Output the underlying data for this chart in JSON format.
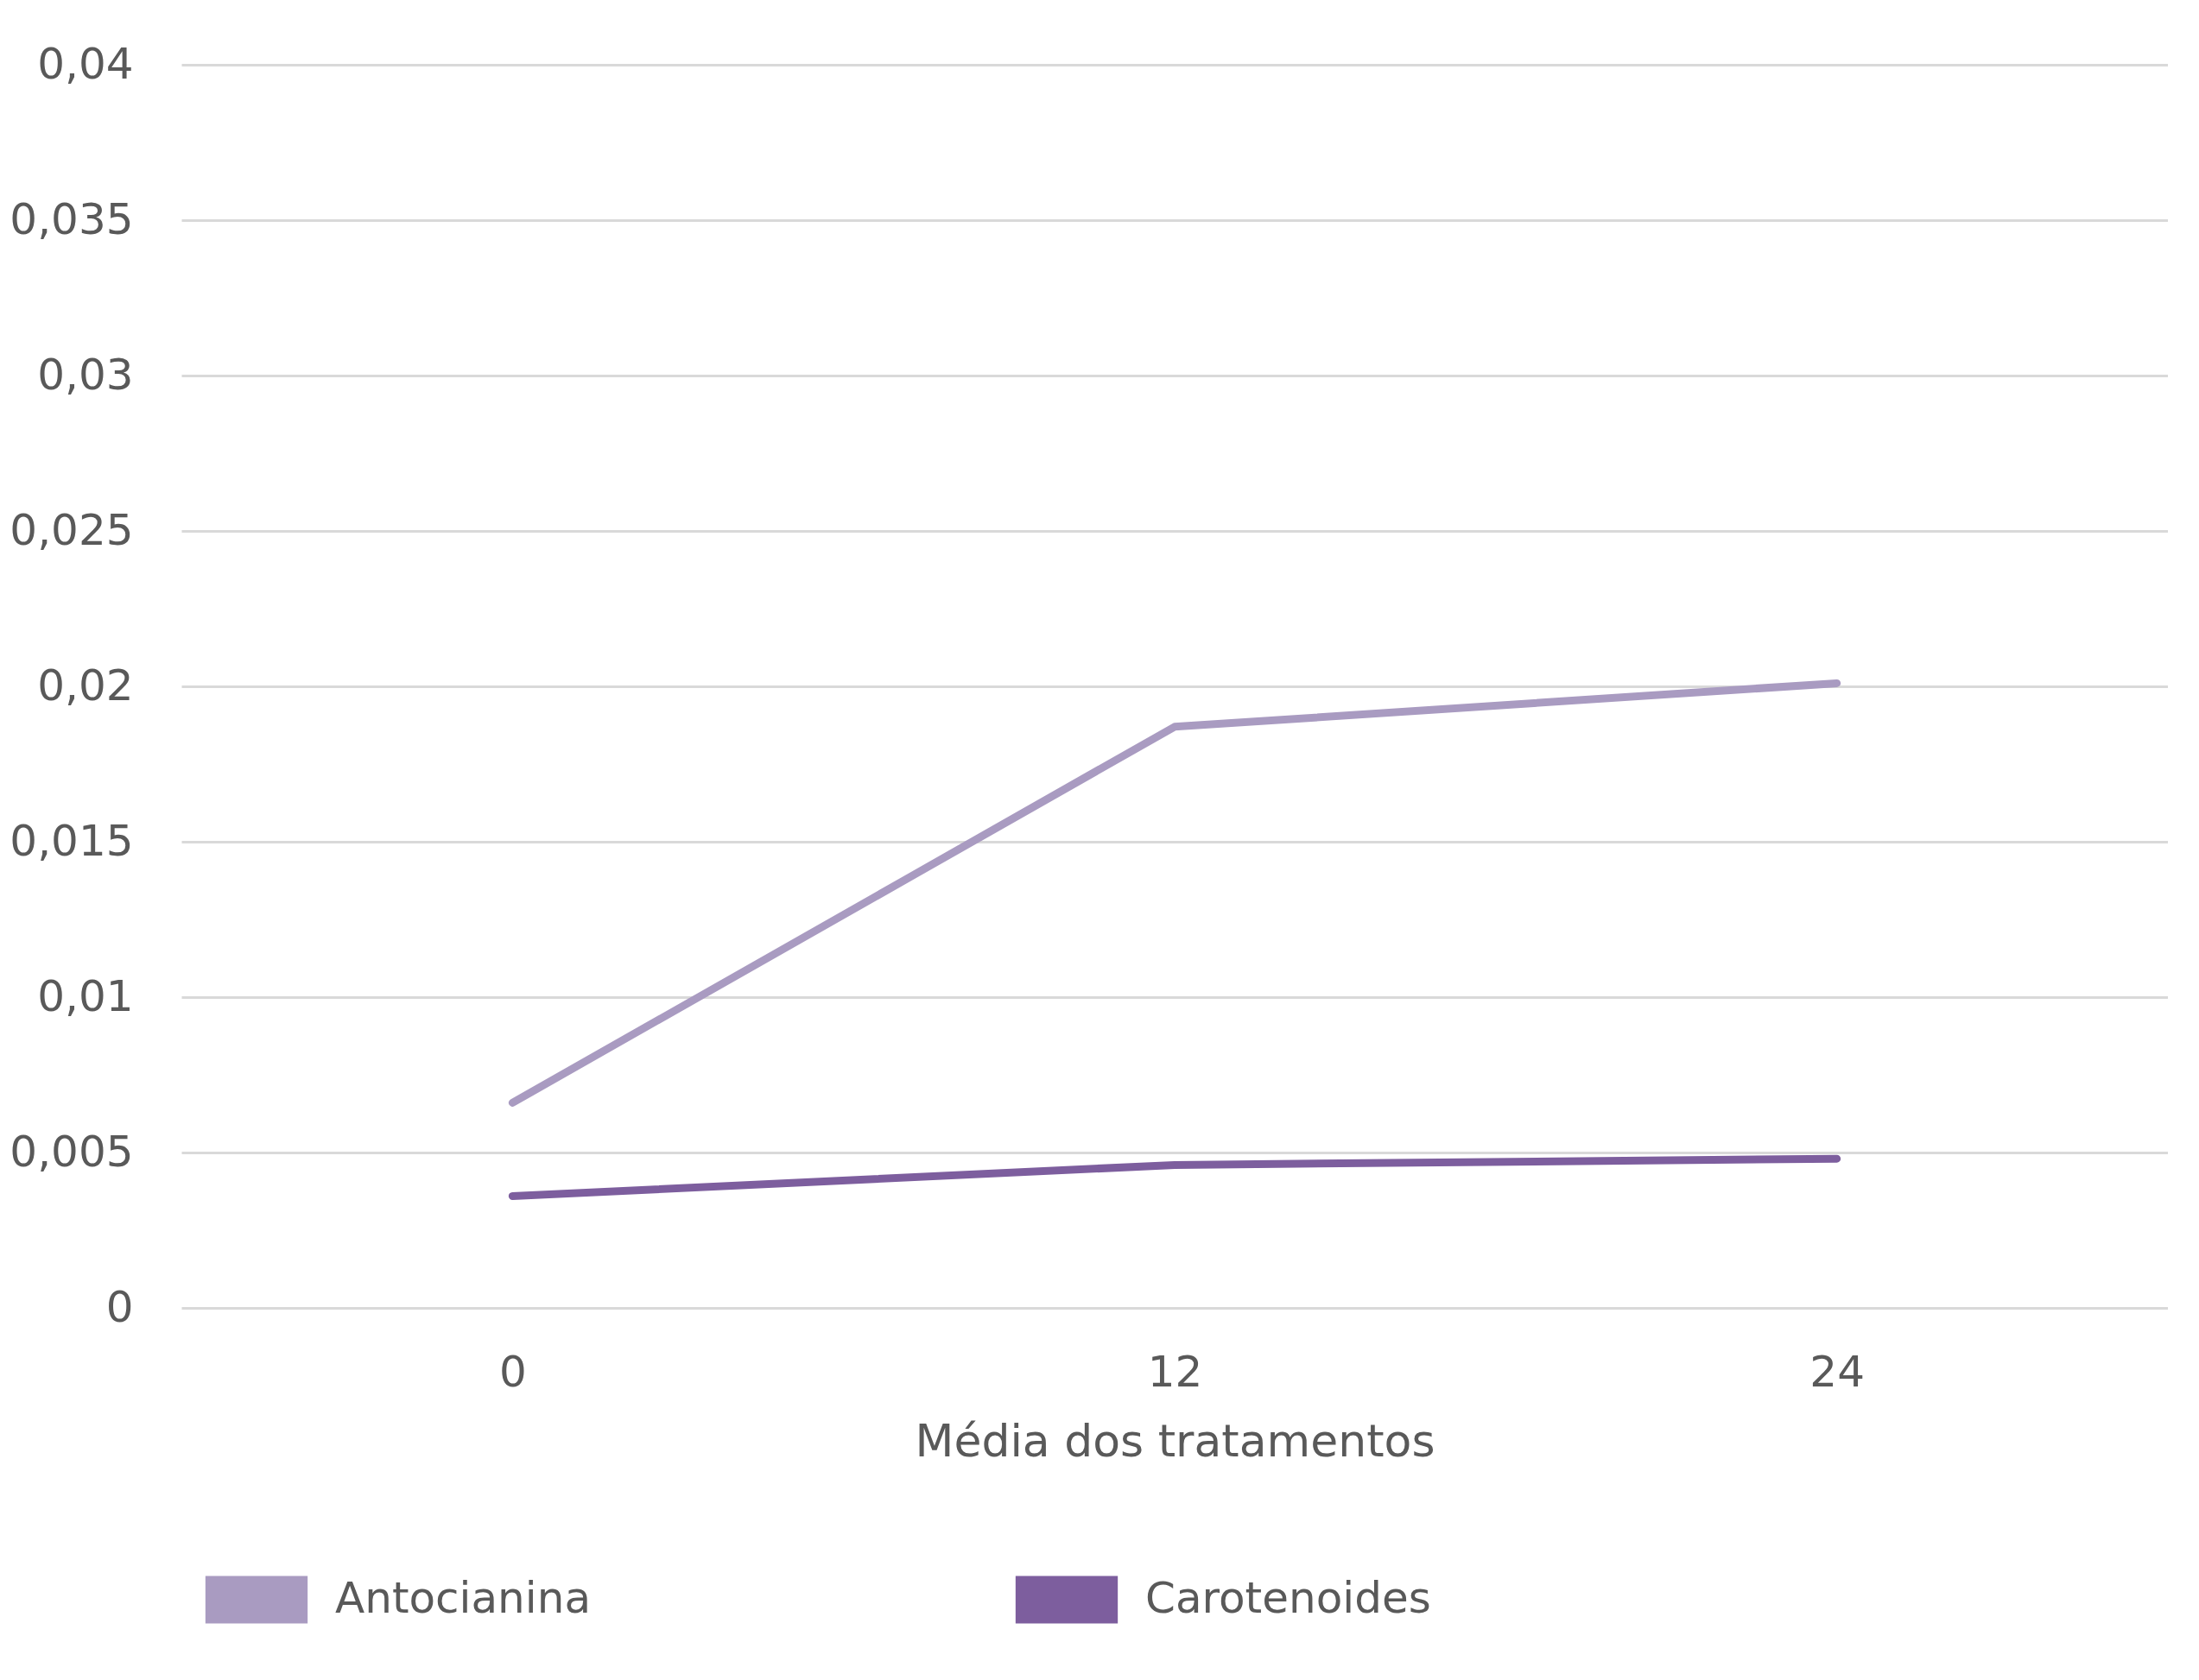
{
  "chart_data": {
    "type": "line",
    "xlabel": "Média dos tratamentos",
    "categories": [
      "0",
      "12",
      "24"
    ],
    "series": [
      {
        "name": "Antocianina",
        "color": "#a99bc1",
        "values": [
          0.0066,
          0.0187,
          0.0201
        ]
      },
      {
        "name": "Carotenoides",
        "color": "#7d5e9e",
        "values": [
          0.0036,
          0.0046,
          0.0048
        ]
      }
    ],
    "ylim": [
      0,
      0.04
    ],
    "yticks": [
      0,
      {
        "value": 0.005,
        "label": "0,005"
      },
      {
        "value": 0.01,
        "label": "0,01"
      },
      {
        "value": 0.015,
        "label": "0,015"
      },
      {
        "value": 0.02,
        "label": "0,02"
      },
      {
        "value": 0.025,
        "label": "0,025"
      },
      {
        "value": 0.03,
        "label": "0,03"
      },
      {
        "value": 0.035,
        "label": "0,035"
      },
      {
        "value": 0.04,
        "label": "0,04"
      }
    ],
    "grid": "y",
    "legend": "bottom",
    "marker": "none",
    "line_style": "solid"
  }
}
